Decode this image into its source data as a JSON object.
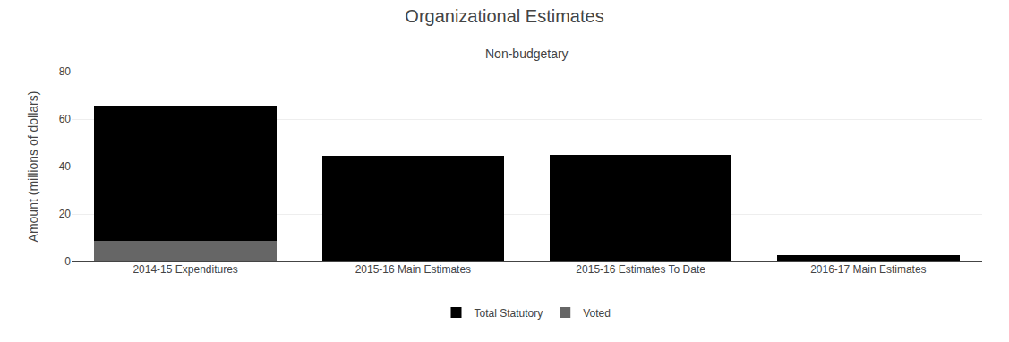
{
  "chart_data": {
    "type": "bar",
    "title": "Organizational Estimates",
    "subtitle": "Non-budgetary",
    "ylabel": "Amount (millions of dollars)",
    "categories": [
      "2014-15 Expenditures",
      "2015-16 Main Estimates",
      "2015-16 Estimates To Date",
      "2016-17 Main Estimates"
    ],
    "series": [
      {
        "name": "Voted",
        "color": "#666666",
        "values": [
          8.5,
          0,
          0,
          0
        ]
      },
      {
        "name": "Total Statutory",
        "color": "#000000",
        "values": [
          57.0,
          44.5,
          45.0,
          2.7
        ]
      }
    ],
    "stacked": true,
    "ylim": [
      0,
      80
    ],
    "yticks": [
      0,
      20,
      40,
      60,
      80
    ],
    "grid": true,
    "legend": "bottom"
  }
}
